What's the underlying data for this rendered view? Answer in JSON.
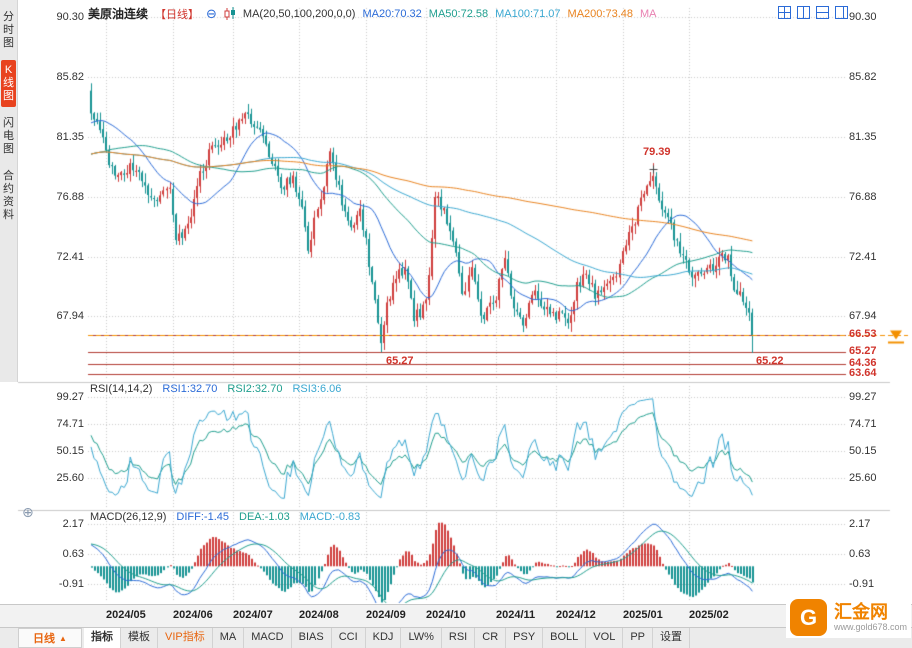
{
  "palette": {
    "up": "#cf3d3c",
    "down": "#169393",
    "grid": "#c9c9c9",
    "ma20": "#2b6bd7",
    "ma50": "#1f9e8e",
    "ma100": "#3aa7d0",
    "ma200": "#e8821e",
    "support": "#b03a30",
    "support_label": "#d0342c",
    "current": "#f39000",
    "annotation": "#d0342c",
    "rsi1": "#1f9e8e",
    "rsi2": "#3aa7d0",
    "macd_diff": "#2b6bd7",
    "macd_dea": "#1f9e8e",
    "side_active": "#e8431f"
  },
  "sidebar": {
    "items": [
      {
        "label": "分时图",
        "active": false
      },
      {
        "label": "K线图",
        "active": true
      },
      {
        "label": "闪电图",
        "active": false
      },
      {
        "label": "合约资料",
        "active": false
      }
    ]
  },
  "header": {
    "symbol": "美原油连续",
    "period_tag": "【日线】",
    "zoom_icon": "⊖",
    "ma_label": "MA(20,50,100,200,0,0)",
    "ma20": "MA20:70.32",
    "ma50": "MA50:72.58",
    "ma100": "MA100:71.07",
    "ma200": "MA200:73.48",
    "ma_extra": "MA"
  },
  "rsi_header": {
    "label": "RSI(14,14,2)",
    "rsi1": "RSI1:32.70",
    "rsi2": "RSI2:32.70",
    "rsi3": "RSI3:6.06"
  },
  "macd_header": {
    "label": "MACD(26,12,9)",
    "diff": "DIFF:-1.45",
    "dea": "DEA:-1.03",
    "macd": "MACD:-0.83"
  },
  "misc": {
    "pane_icon": "⊕"
  },
  "toolbar": {
    "period": {
      "label": "日线",
      "arrow": "▲"
    },
    "tabs": [
      {
        "label": "指标",
        "style": "active"
      },
      {
        "label": "模板",
        "style": ""
      },
      {
        "label": "VIP指标",
        "style": "vip"
      },
      {
        "label": "MA",
        "style": ""
      },
      {
        "label": "MACD",
        "style": ""
      },
      {
        "label": "BIAS",
        "style": ""
      },
      {
        "label": "CCI",
        "style": ""
      },
      {
        "label": "KDJ",
        "style": ""
      },
      {
        "label": "LW%",
        "style": ""
      },
      {
        "label": "RSI",
        "style": ""
      },
      {
        "label": "CR",
        "style": ""
      },
      {
        "label": "PSY",
        "style": ""
      },
      {
        "label": "BOLL",
        "style": ""
      },
      {
        "label": "VOL",
        "style": ""
      },
      {
        "label": "PP",
        "style": ""
      },
      {
        "label": "设置",
        "style": ""
      }
    ]
  },
  "logo": {
    "monogram": "G",
    "name": "汇金网",
    "url": "www.gold678.com"
  },
  "chart_data": {
    "type": "candlestick",
    "title": "美原油连续 日线",
    "candle_count": 220,
    "x_labels": [
      "2024/05",
      "2024/06",
      "2024/07",
      "2024/08",
      "2024/09",
      "2024/10",
      "2024/11",
      "2024/12",
      "2025/01",
      "2025/02"
    ],
    "month_start_idx": [
      5,
      27,
      47,
      69,
      91,
      111,
      134,
      154,
      176,
      198
    ],
    "price_ticks": [
      "90.30",
      "85.82",
      "81.35",
      "76.88",
      "72.41",
      "67.94"
    ],
    "support_levels": [
      "66.53",
      "65.27",
      "64.36",
      "63.64"
    ],
    "current_price": 66.53,
    "annotations": [
      {
        "text": "79.39",
        "at": "peak"
      },
      {
        "text": "65.27",
        "at": "trough"
      },
      {
        "text": "65.22",
        "at": "last_low"
      }
    ],
    "special": {
      "trough_idx": 96,
      "trough_low": 65.27,
      "trough_close": 65.95,
      "peak_idx": 186,
      "peak_high": 79.39,
      "last_low": 65.22,
      "last_close": 66.53
    },
    "series_anchors": [
      [
        0,
        83.0
      ],
      [
        4,
        81.6
      ],
      [
        6,
        78.9
      ],
      [
        10,
        78.4
      ],
      [
        14,
        79.2
      ],
      [
        18,
        77.6
      ],
      [
        22,
        76.9
      ],
      [
        26,
        77.2
      ],
      [
        28,
        73.4
      ],
      [
        32,
        74.8
      ],
      [
        36,
        78.4
      ],
      [
        40,
        80.6
      ],
      [
        44,
        81.0
      ],
      [
        48,
        82.2
      ],
      [
        51,
        83.3
      ],
      [
        55,
        82.0
      ],
      [
        59,
        80.1
      ],
      [
        63,
        77.6
      ],
      [
        67,
        78.2
      ],
      [
        70,
        75.8
      ],
      [
        72,
        73.0
      ],
      [
        76,
        77.0
      ],
      [
        79,
        80.0
      ],
      [
        83,
        76.5
      ],
      [
        86,
        74.3
      ],
      [
        89,
        75.8
      ],
      [
        91,
        73.5
      ],
      [
        93,
        70.2
      ],
      [
        96,
        65.95
      ],
      [
        98,
        68.7
      ],
      [
        101,
        71.1
      ],
      [
        104,
        71.5
      ],
      [
        107,
        67.9
      ],
      [
        110,
        68.4
      ],
      [
        112,
        70.8
      ],
      [
        114,
        77.0
      ],
      [
        117,
        75.8
      ],
      [
        120,
        73.8
      ],
      [
        123,
        69.5
      ],
      [
        126,
        71.5
      ],
      [
        129,
        67.6
      ],
      [
        132,
        68.8
      ],
      [
        134,
        69.4
      ],
      [
        137,
        72.2
      ],
      [
        140,
        68.3
      ],
      [
        143,
        67.1
      ],
      [
        146,
        69.9
      ],
      [
        149,
        68.8
      ],
      [
        152,
        68.0
      ],
      [
        155,
        68.1
      ],
      [
        158,
        67.3
      ],
      [
        161,
        70.1
      ],
      [
        164,
        71.2
      ],
      [
        167,
        69.6
      ],
      [
        170,
        70.0
      ],
      [
        173,
        70.6
      ],
      [
        175,
        71.7
      ],
      [
        178,
        73.9
      ],
      [
        181,
        75.9
      ],
      [
        184,
        77.8
      ],
      [
        186,
        78.6
      ],
      [
        188,
        76.8
      ],
      [
        190,
        75.8
      ],
      [
        193,
        73.9
      ],
      [
        196,
        72.6
      ],
      [
        199,
        71.1
      ],
      [
        202,
        70.9
      ],
      [
        205,
        71.4
      ],
      [
        208,
        72.3
      ],
      [
        211,
        72.5
      ],
      [
        213,
        70.2
      ],
      [
        215,
        69.5
      ],
      [
        217,
        68.9
      ],
      [
        218,
        68.6
      ],
      [
        219,
        66.53
      ]
    ],
    "ma_periods": [
      20,
      50,
      100,
      200
    ],
    "rsi": {
      "ticks": [
        "99.27",
        "74.71",
        "50.15",
        "25.60"
      ],
      "values": {
        "rsi1": 32.7,
        "rsi2": 32.7,
        "rsi3": 6.06
      }
    },
    "macd": {
      "ticks": [
        "2.17",
        "0.63",
        "-0.91"
      ],
      "values": {
        "diff": -1.45,
        "dea": -1.03,
        "macd": -0.83
      }
    }
  }
}
